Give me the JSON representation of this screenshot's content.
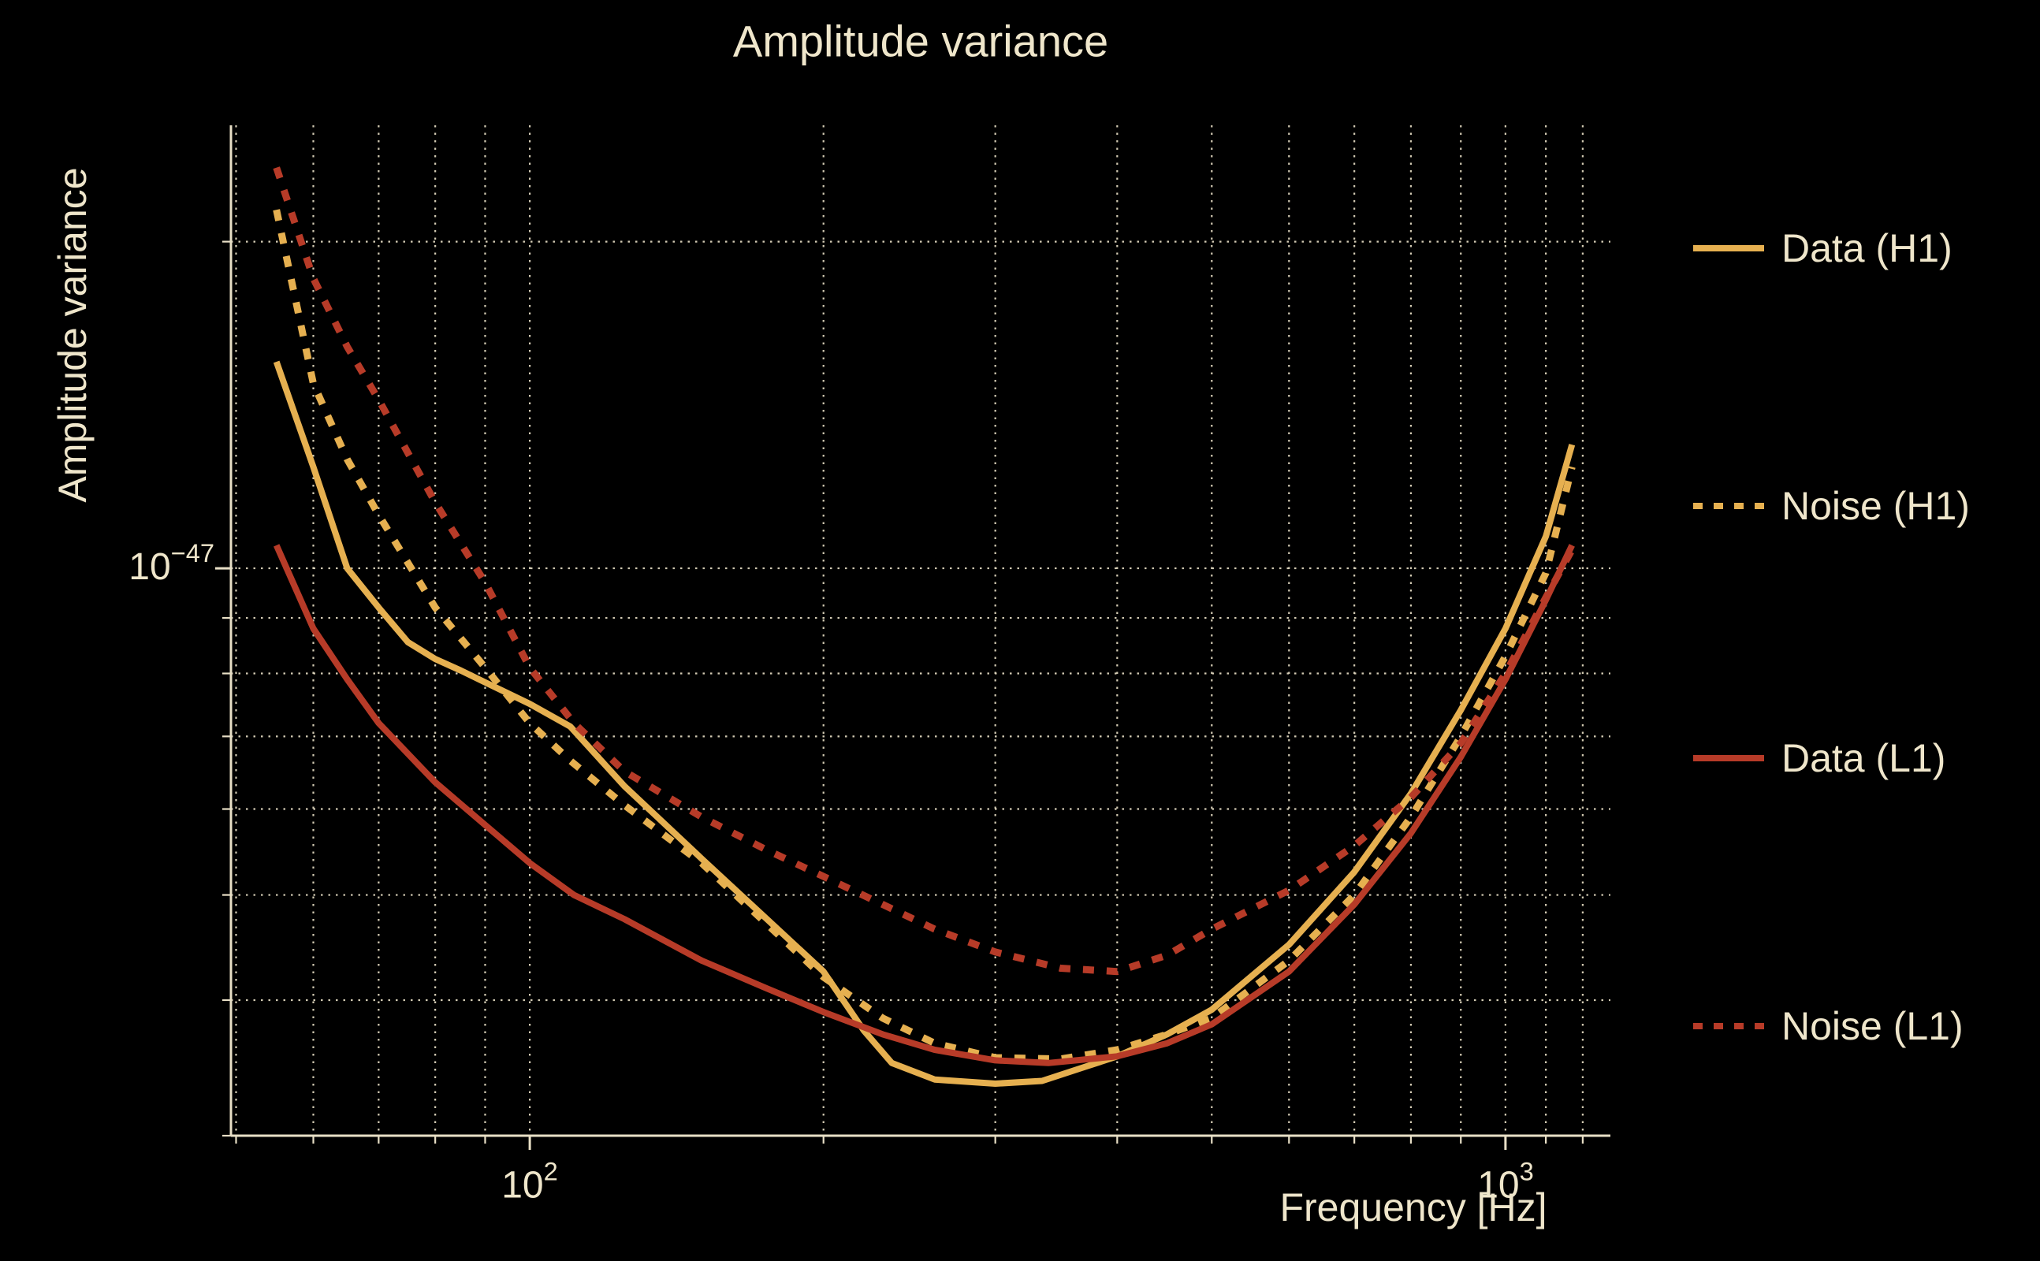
{
  "title": "Amplitude variance",
  "colors": {
    "background": "#000000",
    "text": "#EFE6CB",
    "grid": "#DDD5BD",
    "spine": "#E8DFC6",
    "gold": "#E6B050",
    "red": "#B73B28"
  },
  "axes": {
    "x": {
      "label": "Frequency [Hz]",
      "scale": "log",
      "min": 49.4,
      "max": 1281,
      "major_ticks": [
        {
          "value": 100,
          "label": {
            "base": "10",
            "exp": "2"
          }
        },
        {
          "value": 1000,
          "label": {
            "base": "10",
            "exp": "3"
          }
        }
      ],
      "minor_gridlines": [
        50,
        60,
        70,
        80,
        90,
        200,
        300,
        400,
        500,
        600,
        700,
        800,
        900,
        1100,
        1200
      ],
      "grid": true
    },
    "y": {
      "label": "Amplitude variance",
      "scale": "log",
      "min": 3e-48,
      "max": 2.56e-47,
      "major_ticks": [
        {
          "value": 1e-47,
          "label": {
            "base": "10",
            "exp": "−47"
          }
        }
      ],
      "minor_gridlines": [
        2e-47,
        9e-48,
        8e-48,
        7e-48,
        6e-48,
        5e-48,
        4e-48,
        3e-48
      ],
      "grid": true
    }
  },
  "chart_data": {
    "type": "line",
    "title": "Amplitude variance",
    "xlabel": "Frequency [Hz]",
    "ylabel": "Amplitude variance",
    "xlim": [
      49.4,
      1281
    ],
    "ylim": [
      3e-48,
      2.56e-47
    ],
    "legend_position": "right-outside",
    "series": [
      {
        "name": "Data (H1)",
        "color_key": "gold",
        "style": "solid",
        "points": [
          [
            55,
            1.55e-47
          ],
          [
            60,
            1.24e-47
          ],
          [
            65,
            1e-47
          ],
          [
            70,
            9.2e-48
          ],
          [
            75,
            8.55e-48
          ],
          [
            80,
            8.25e-48
          ],
          [
            85,
            8.05e-48
          ],
          [
            90,
            7.85e-48
          ],
          [
            100,
            7.5e-48
          ],
          [
            110,
            7.15e-48
          ],
          [
            125,
            6.3e-48
          ],
          [
            150,
            5.4e-48
          ],
          [
            175,
            4.75e-48
          ],
          [
            200,
            4.25e-48
          ],
          [
            220,
            3.75e-48
          ],
          [
            235,
            3.5e-48
          ],
          [
            260,
            3.38e-48
          ],
          [
            300,
            3.35e-48
          ],
          [
            335,
            3.37e-48
          ],
          [
            370,
            3.47e-48
          ],
          [
            400,
            3.55e-48
          ],
          [
            450,
            3.72e-48
          ],
          [
            500,
            3.92e-48
          ],
          [
            600,
            4.5e-48
          ],
          [
            700,
            5.25e-48
          ],
          [
            800,
            6.2e-48
          ],
          [
            900,
            7.4e-48
          ],
          [
            1000,
            8.8e-48
          ],
          [
            1100,
            1.07e-47
          ],
          [
            1170,
            1.3e-47
          ]
        ]
      },
      {
        "name": "Noise (H1)",
        "color_key": "gold",
        "style": "dotted",
        "points": [
          [
            55,
            2.14e-47
          ],
          [
            60,
            1.48e-47
          ],
          [
            65,
            1.26e-47
          ],
          [
            70,
            1.12e-47
          ],
          [
            80,
            9.2e-48
          ],
          [
            90,
            8.1e-48
          ],
          [
            100,
            7.2e-48
          ],
          [
            110,
            6.65e-48
          ],
          [
            125,
            6.05e-48
          ],
          [
            150,
            5.35e-48
          ],
          [
            175,
            4.7e-48
          ],
          [
            200,
            4.2e-48
          ],
          [
            230,
            3.85e-48
          ],
          [
            260,
            3.65e-48
          ],
          [
            300,
            3.54e-48
          ],
          [
            350,
            3.53e-48
          ],
          [
            400,
            3.6e-48
          ],
          [
            450,
            3.72e-48
          ],
          [
            500,
            3.85e-48
          ],
          [
            600,
            4.35e-48
          ],
          [
            700,
            5e-48
          ],
          [
            800,
            5.9e-48
          ],
          [
            900,
            7e-48
          ],
          [
            1000,
            8.3e-48
          ],
          [
            1100,
            9.9e-48
          ],
          [
            1170,
            1.24e-47
          ]
        ]
      },
      {
        "name": "Data (L1)",
        "color_key": "red",
        "style": "solid",
        "points": [
          [
            55,
            1.05e-47
          ],
          [
            60,
            8.8e-48
          ],
          [
            65,
            7.9e-48
          ],
          [
            70,
            7.2e-48
          ],
          [
            80,
            6.35e-48
          ],
          [
            90,
            5.8e-48
          ],
          [
            100,
            5.35e-48
          ],
          [
            111,
            5e-48
          ],
          [
            125,
            4.75e-48
          ],
          [
            150,
            4.35e-48
          ],
          [
            175,
            4.1e-48
          ],
          [
            200,
            3.9e-48
          ],
          [
            230,
            3.72e-48
          ],
          [
            260,
            3.6e-48
          ],
          [
            300,
            3.52e-48
          ],
          [
            340,
            3.5e-48
          ],
          [
            400,
            3.55e-48
          ],
          [
            450,
            3.65e-48
          ],
          [
            500,
            3.8e-48
          ],
          [
            600,
            4.25e-48
          ],
          [
            700,
            4.9e-48
          ],
          [
            800,
            5.7e-48
          ],
          [
            900,
            6.7e-48
          ],
          [
            1000,
            7.9e-48
          ],
          [
            1100,
            9.35e-48
          ],
          [
            1170,
            1.05e-47
          ]
        ]
      },
      {
        "name": "Noise (L1)",
        "color_key": "red",
        "style": "dotted",
        "points": [
          [
            55,
            2.34e-47
          ],
          [
            60,
            1.85e-47
          ],
          [
            65,
            1.6e-47
          ],
          [
            70,
            1.43e-47
          ],
          [
            80,
            1.15e-47
          ],
          [
            90,
            9.7e-48
          ],
          [
            100,
            8.1e-48
          ],
          [
            111,
            7.2e-48
          ],
          [
            125,
            6.5e-48
          ],
          [
            150,
            5.9e-48
          ],
          [
            175,
            5.5e-48
          ],
          [
            200,
            5.2e-48
          ],
          [
            230,
            4.9e-48
          ],
          [
            260,
            4.65e-48
          ],
          [
            300,
            4.43e-48
          ],
          [
            350,
            4.28e-48
          ],
          [
            400,
            4.25e-48
          ],
          [
            450,
            4.4e-48
          ],
          [
            500,
            4.65e-48
          ],
          [
            600,
            5.05e-48
          ],
          [
            700,
            5.55e-48
          ],
          [
            800,
            6.15e-48
          ],
          [
            900,
            6.9e-48
          ],
          [
            1000,
            8e-48
          ],
          [
            1100,
            9.4e-48
          ],
          [
            1170,
            1.04e-47
          ]
        ]
      }
    ]
  },
  "legend": {
    "items": [
      {
        "label": "Data (H1)"
      },
      {
        "label": "Noise (H1)"
      },
      {
        "label": "Data (L1)"
      },
      {
        "label": "Noise (L1)"
      }
    ]
  }
}
